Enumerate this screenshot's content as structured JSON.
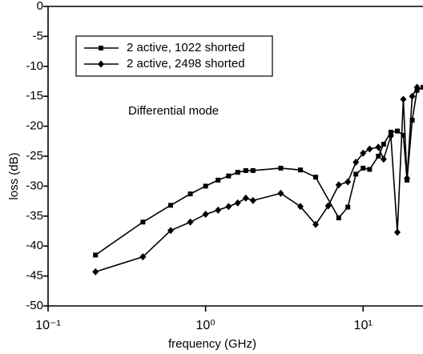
{
  "chart_data": {
    "type": "line",
    "annotation": "Differential mode",
    "x_label": "frequency (GHz)",
    "y_label": "loss (dB)",
    "xscale": "log",
    "xlim": [
      0.1,
      24
    ],
    "ylim": [
      -50,
      0
    ],
    "xticks": [
      {
        "value": 0.1,
        "label": "10⁻¹"
      },
      {
        "value": 1,
        "label": "10⁰"
      },
      {
        "value": 10,
        "label": "10¹"
      }
    ],
    "yticks": [
      0,
      -5,
      -10,
      -15,
      -20,
      -25,
      -30,
      -35,
      -40,
      -45,
      -50
    ],
    "series": [
      {
        "name": "2 active, 1022 shorted",
        "color": "#000000",
        "marker": "square",
        "x": [
          0.2,
          0.4,
          0.6,
          0.8,
          1.0,
          1.2,
          1.4,
          1.6,
          1.8,
          2.0,
          3,
          4,
          5,
          7,
          8,
          9,
          10,
          11,
          12.5,
          13.5,
          15,
          16.5,
          18,
          19,
          20.5,
          22,
          24
        ],
        "values": [
          -41.5,
          -36,
          -33.2,
          -31.3,
          -30,
          -29,
          -28.3,
          -27.7,
          -27.4,
          -27.4,
          -27,
          -27.3,
          -28.5,
          -35.3,
          -33.5,
          -28,
          -27,
          -27.2,
          -25,
          -23,
          -21,
          -20.8,
          -21.5,
          -29,
          -19,
          -14,
          -13.5
        ]
      },
      {
        "name": "2 active, 2498 shorted",
        "color": "#000000",
        "marker": "diamond",
        "x": [
          0.2,
          0.4,
          0.6,
          0.8,
          1.0,
          1.2,
          1.4,
          1.6,
          1.8,
          2.0,
          3,
          4,
          5,
          6,
          7,
          8,
          9,
          10,
          11,
          12.5,
          13.5,
          15,
          16.5,
          18,
          19,
          20.5,
          22
        ],
        "values": [
          -44.3,
          -41.8,
          -37.4,
          -36,
          -34.7,
          -34,
          -33.4,
          -32.8,
          -32,
          -32.4,
          -31.2,
          -33.4,
          -36.4,
          -33.3,
          -29.8,
          -29.3,
          -26,
          -24.5,
          -23.8,
          -23.5,
          -25.5,
          -21.6,
          -37.7,
          -15.5,
          -28.7,
          -15,
          -13.5
        ]
      }
    ]
  }
}
